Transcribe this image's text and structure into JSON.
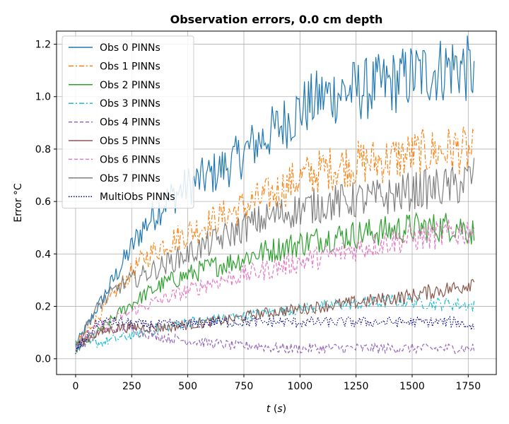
{
  "chart_data": {
    "type": "line",
    "title": "Observation errors, 0.0 cm depth",
    "xlabel": "t (s)",
    "ylabel": "Error °C",
    "xlim": [
      -85,
      1875
    ],
    "ylim": [
      -0.06,
      1.25
    ],
    "xticks": [
      0,
      250,
      500,
      750,
      1000,
      1250,
      1500,
      1750
    ],
    "xtick_labels": [
      "0",
      "250",
      "500",
      "750",
      "1000",
      "1250",
      "1500",
      "1750"
    ],
    "yticks": [
      0.0,
      0.2,
      0.4,
      0.6,
      0.8,
      1.0,
      1.2
    ],
    "ytick_labels": [
      "0.0",
      "0.2",
      "0.4",
      "0.6",
      "0.8",
      "1.0",
      "1.2"
    ],
    "grid": true,
    "legend_position": "top-left",
    "series": [
      {
        "name": "Obs 0 PINNs",
        "color": "#1f77b4",
        "dash": "solid",
        "points": [
          [
            0,
            0.05
          ],
          [
            100,
            0.2
          ],
          [
            200,
            0.35
          ],
          [
            300,
            0.5
          ],
          [
            400,
            0.6
          ],
          [
            500,
            0.66
          ],
          [
            600,
            0.7
          ],
          [
            700,
            0.75
          ],
          [
            800,
            0.82
          ],
          [
            900,
            0.88
          ],
          [
            1000,
            0.95
          ],
          [
            1100,
            1.0
          ],
          [
            1200,
            1.02
          ],
          [
            1300,
            1.03
          ],
          [
            1400,
            1.05
          ],
          [
            1500,
            1.08
          ],
          [
            1600,
            1.1
          ],
          [
            1700,
            1.12
          ],
          [
            1780,
            1.09
          ]
        ]
      },
      {
        "name": "Obs 1 PINNs",
        "color": "#ff7f0e",
        "dash": "dashdot",
        "points": [
          [
            0,
            0.05
          ],
          [
            100,
            0.16
          ],
          [
            200,
            0.28
          ],
          [
            300,
            0.38
          ],
          [
            400,
            0.44
          ],
          [
            500,
            0.48
          ],
          [
            600,
            0.52
          ],
          [
            700,
            0.56
          ],
          [
            800,
            0.6
          ],
          [
            900,
            0.64
          ],
          [
            1000,
            0.69
          ],
          [
            1100,
            0.72
          ],
          [
            1200,
            0.74
          ],
          [
            1300,
            0.75
          ],
          [
            1400,
            0.76
          ],
          [
            1500,
            0.78
          ],
          [
            1600,
            0.79
          ],
          [
            1700,
            0.8
          ],
          [
            1780,
            0.78
          ]
        ]
      },
      {
        "name": "Obs 2 PINNs",
        "color": "#2ca02c",
        "dash": "solid",
        "points": [
          [
            0,
            0.04
          ],
          [
            100,
            0.1
          ],
          [
            200,
            0.18
          ],
          [
            300,
            0.24
          ],
          [
            400,
            0.29
          ],
          [
            500,
            0.32
          ],
          [
            600,
            0.35
          ],
          [
            700,
            0.37
          ],
          [
            800,
            0.4
          ],
          [
            900,
            0.42
          ],
          [
            1000,
            0.44
          ],
          [
            1100,
            0.46
          ],
          [
            1200,
            0.47
          ],
          [
            1300,
            0.48
          ],
          [
            1400,
            0.49
          ],
          [
            1500,
            0.5
          ],
          [
            1600,
            0.5
          ],
          [
            1700,
            0.51
          ],
          [
            1780,
            0.48
          ]
        ]
      },
      {
        "name": "Obs 3 PINNs",
        "color": "#17becf",
        "dash": "dashdot",
        "points": [
          [
            0,
            0.05
          ],
          [
            100,
            0.06
          ],
          [
            200,
            0.08
          ],
          [
            300,
            0.1
          ],
          [
            400,
            0.12
          ],
          [
            500,
            0.14
          ],
          [
            600,
            0.15
          ],
          [
            700,
            0.16
          ],
          [
            800,
            0.17
          ],
          [
            900,
            0.18
          ],
          [
            1000,
            0.19
          ],
          [
            1100,
            0.2
          ],
          [
            1200,
            0.21
          ],
          [
            1300,
            0.21
          ],
          [
            1400,
            0.22
          ],
          [
            1500,
            0.22
          ],
          [
            1600,
            0.21
          ],
          [
            1700,
            0.21
          ],
          [
            1780,
            0.2
          ]
        ]
      },
      {
        "name": "Obs 4 PINNs",
        "color": "#9467bd",
        "dash": "dashed",
        "points": [
          [
            0,
            0.04
          ],
          [
            100,
            0.1
          ],
          [
            200,
            0.12
          ],
          [
            300,
            0.1
          ],
          [
            400,
            0.08
          ],
          [
            500,
            0.07
          ],
          [
            600,
            0.06
          ],
          [
            700,
            0.05
          ],
          [
            800,
            0.05
          ],
          [
            900,
            0.04
          ],
          [
            1000,
            0.04
          ],
          [
            1100,
            0.04
          ],
          [
            1200,
            0.04
          ],
          [
            1300,
            0.04
          ],
          [
            1400,
            0.04
          ],
          [
            1500,
            0.04
          ],
          [
            1600,
            0.04
          ],
          [
            1700,
            0.04
          ],
          [
            1780,
            0.04
          ]
        ]
      },
      {
        "name": "Obs 5 PINNs",
        "color": "#8c564b",
        "dash": "solid",
        "points": [
          [
            0,
            0.05
          ],
          [
            100,
            0.1
          ],
          [
            200,
            0.12
          ],
          [
            300,
            0.12
          ],
          [
            400,
            0.12
          ],
          [
            500,
            0.13
          ],
          [
            600,
            0.14
          ],
          [
            700,
            0.15
          ],
          [
            800,
            0.17
          ],
          [
            900,
            0.18
          ],
          [
            1000,
            0.19
          ],
          [
            1100,
            0.2
          ],
          [
            1200,
            0.21
          ],
          [
            1300,
            0.22
          ],
          [
            1400,
            0.23
          ],
          [
            1500,
            0.24
          ],
          [
            1600,
            0.26
          ],
          [
            1700,
            0.27
          ],
          [
            1780,
            0.3
          ]
        ]
      },
      {
        "name": "Obs 6 PINNs",
        "color": "#e377c2",
        "dash": "dashed",
        "points": [
          [
            0,
            0.05
          ],
          [
            100,
            0.12
          ],
          [
            200,
            0.16
          ],
          [
            300,
            0.2
          ],
          [
            400,
            0.23
          ],
          [
            500,
            0.26
          ],
          [
            600,
            0.29
          ],
          [
            700,
            0.31
          ],
          [
            800,
            0.33
          ],
          [
            900,
            0.35
          ],
          [
            1000,
            0.37
          ],
          [
            1100,
            0.39
          ],
          [
            1200,
            0.41
          ],
          [
            1300,
            0.43
          ],
          [
            1400,
            0.45
          ],
          [
            1500,
            0.46
          ],
          [
            1600,
            0.47
          ],
          [
            1700,
            0.48
          ],
          [
            1780,
            0.5
          ]
        ]
      },
      {
        "name": "Obs 7 PINNs",
        "color": "#7f7f7f",
        "dash": "solid",
        "points": [
          [
            0,
            0.05
          ],
          [
            100,
            0.2
          ],
          [
            200,
            0.28
          ],
          [
            300,
            0.32
          ],
          [
            400,
            0.36
          ],
          [
            500,
            0.4
          ],
          [
            600,
            0.44
          ],
          [
            700,
            0.48
          ],
          [
            800,
            0.52
          ],
          [
            900,
            0.55
          ],
          [
            1000,
            0.57
          ],
          [
            1100,
            0.59
          ],
          [
            1200,
            0.6
          ],
          [
            1300,
            0.61
          ],
          [
            1400,
            0.62
          ],
          [
            1500,
            0.64
          ],
          [
            1600,
            0.65
          ],
          [
            1700,
            0.66
          ],
          [
            1780,
            0.7
          ]
        ]
      },
      {
        "name": "MultiObs PINNs",
        "color": "#00008b",
        "dash": "dotted",
        "points": [
          [
            0,
            0.03
          ],
          [
            100,
            0.14
          ],
          [
            200,
            0.14
          ],
          [
            300,
            0.13
          ],
          [
            400,
            0.13
          ],
          [
            500,
            0.13
          ],
          [
            600,
            0.14
          ],
          [
            700,
            0.14
          ],
          [
            800,
            0.14
          ],
          [
            900,
            0.14
          ],
          [
            1000,
            0.14
          ],
          [
            1100,
            0.14
          ],
          [
            1200,
            0.14
          ],
          [
            1300,
            0.14
          ],
          [
            1400,
            0.14
          ],
          [
            1500,
            0.14
          ],
          [
            1600,
            0.14
          ],
          [
            1700,
            0.14
          ],
          [
            1780,
            0.12
          ]
        ]
      }
    ]
  }
}
